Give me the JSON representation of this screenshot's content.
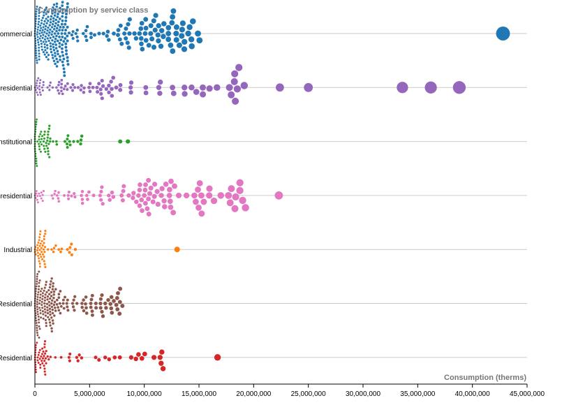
{
  "chart_data": {
    "type": "scatter",
    "title": "Consumption by service class",
    "xlabel": "Consumption (therms)",
    "xlim": [
      0,
      45000000
    ],
    "x_ticks": [
      "0",
      "5,000,000",
      "10,000,000",
      "15,000,000",
      "20,000,000",
      "25,000,000",
      "30,000,000",
      "35,000,000",
      "40,000,000",
      "45,000,000"
    ],
    "x_tick_values": [
      0,
      5000000,
      10000000,
      15000000,
      20000000,
      25000000,
      30000000,
      35000000,
      40000000,
      45000000
    ],
    "grid": true,
    "categories": [
      "Commercial",
      "Residential",
      "Institutional",
      "Residential",
      "Industrial",
      "Residential",
      "Residential"
    ],
    "category_labels": [
      "Commercial",
      "residential",
      "Institutional",
      "residential",
      "Industrial",
      "Residential",
      "Residential"
    ],
    "series": [
      {
        "category_index": 0,
        "color": "#1f77b4",
        "cluster": {
          "n": 300,
          "min": 0,
          "max": 15200000,
          "peak": 2500000,
          "spread": 54
        },
        "outliers": [
          42800000
        ]
      },
      {
        "category_index": 1,
        "color": "#9467bd",
        "cluster": {
          "n": 95,
          "min": 0,
          "max": 20200000,
          "peak": 6000000,
          "spread": 18
        },
        "outliers": [
          22400000,
          25000000,
          33600000,
          36200000,
          38800000
        ]
      },
      {
        "category_index": 2,
        "color": "#2ca02c",
        "cluster": {
          "n": 70,
          "min": 0,
          "max": 4500000,
          "peak": 1200000,
          "spread": 22
        },
        "outliers": [
          7800000,
          8500000
        ]
      },
      {
        "category_index": 3,
        "color": "#e377c2",
        "cluster": {
          "n": 110,
          "min": 0,
          "max": 19600000,
          "peak": 10000000,
          "spread": 24
        },
        "outliers": [
          22300000
        ]
      },
      {
        "category_index": 4,
        "color": "#ff7f0e",
        "cluster": {
          "n": 55,
          "min": 0,
          "max": 4200000,
          "peak": 800000,
          "spread": 16
        },
        "outliers": [
          13000000
        ]
      },
      {
        "category_index": 5,
        "color": "#8c564b",
        "cluster": {
          "n": 190,
          "min": 0,
          "max": 8000000,
          "peak": 1500000,
          "spread": 32
        },
        "outliers": []
      },
      {
        "category_index": 6,
        "color": "#d62728",
        "cluster": {
          "n": 70,
          "min": 0,
          "max": 11800000,
          "peak": 900000,
          "spread": 14
        },
        "outliers": [
          16700000
        ]
      }
    ]
  }
}
